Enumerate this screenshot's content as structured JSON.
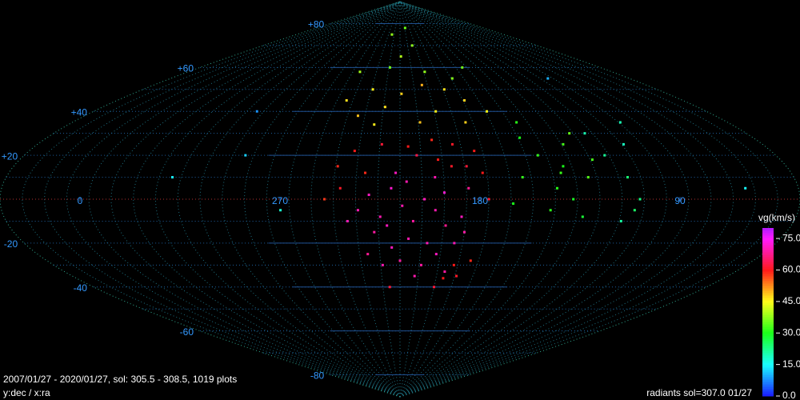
{
  "chart_data": {
    "type": "scatter",
    "projection": "sinusoidal",
    "xlim": [
      396,
      36
    ],
    "ylim": [
      -90,
      90
    ],
    "xticks": [
      270,
      180,
      90,
      0
    ],
    "yticks": [
      {
        "value": 80,
        "label": "+80"
      },
      {
        "value": 60,
        "label": "+60"
      },
      {
        "value": 40,
        "label": "+40"
      },
      {
        "value": 20,
        "label": "+20"
      },
      -20,
      -40,
      -60,
      -80
    ],
    "grid": true,
    "x": [
      200,
      205,
      210,
      215,
      220,
      225,
      230,
      195,
      190,
      198,
      205,
      212,
      220,
      228,
      235,
      188,
      185,
      200,
      218,
      208,
      192,
      225,
      232,
      240,
      186,
      196,
      213,
      222,
      203,
      216,
      180,
      190,
      200,
      212,
      225,
      238,
      245,
      243,
      178,
      185,
      192,
      198,
      232,
      208,
      188,
      185,
      192,
      180,
      196,
      250,
      176,
      222,
      175,
      185,
      195,
      205,
      215,
      225,
      235,
      240,
      200,
      165,
      180,
      230,
      250,
      200,
      215,
      225,
      195,
      175,
      250,
      205,
      230,
      160,
      150,
      140,
      135,
      145,
      130,
      155,
      160,
      125,
      138,
      148,
      128,
      165,
      142,
      133,
      152,
      118,
      112,
      120,
      108,
      115,
      105,
      95,
      110,
      290,
      300,
      100,
      60,
      320,
      270
    ],
    "y": [
      -5,
      0,
      -10,
      -3,
      5,
      -8,
      2,
      -12,
      -20,
      -25,
      -30,
      -18,
      -22,
      -15,
      -5,
      -8,
      5,
      10,
      12,
      -35,
      -33,
      -30,
      -25,
      -10,
      -15,
      3,
      8,
      -12,
      -20,
      -28,
      22,
      25,
      27,
      24,
      25,
      22,
      15,
      5,
      12,
      15,
      15,
      18,
      12,
      20,
      -30,
      -35,
      -36,
      -28,
      -40,
      0,
      0,
      -40,
      45,
      50,
      40,
      35,
      48,
      42,
      50,
      38,
      52,
      40,
      35,
      34,
      45,
      70,
      65,
      60,
      58,
      55,
      58,
      78,
      75,
      60,
      20,
      15,
      25,
      5,
      10,
      28,
      10,
      18,
      0,
      -5,
      30,
      -2,
      12,
      -8,
      35,
      20,
      10,
      30,
      0,
      -10,
      25,
      35,
      -5,
      20,
      40,
      55,
      5,
      10,
      -5
    ],
    "vg": [
      70,
      71,
      69,
      70,
      72,
      70,
      71,
      68,
      70,
      71,
      69,
      70,
      71,
      69,
      70,
      71,
      68,
      70,
      71,
      70,
      69,
      70,
      68,
      70,
      69,
      72,
      70,
      71,
      70,
      69,
      60,
      61,
      59,
      60,
      62,
      60,
      59,
      61,
      60,
      62,
      61,
      60,
      59,
      63,
      60,
      61,
      60,
      59,
      62,
      58,
      61,
      62,
      48,
      47,
      46,
      49,
      48,
      47,
      46,
      49,
      50,
      45,
      48,
      46,
      47,
      38,
      40,
      36,
      38,
      37,
      39,
      35,
      38,
      36,
      32,
      30,
      33,
      31,
      34,
      30,
      32,
      33,
      29,
      31,
      35,
      30,
      32,
      28,
      31,
      22,
      24,
      20,
      23,
      21,
      19,
      20,
      25,
      12,
      8,
      10,
      15,
      14,
      18
    ],
    "colorbar": {
      "label": "vg(km/s)",
      "lim": [
        0,
        80
      ],
      "ticks": [
        {
          "value": 75,
          "label": "75.0"
        },
        {
          "value": 60,
          "label": "60.0"
        },
        {
          "value": 45,
          "label": "45.0"
        },
        {
          "value": 30,
          "label": "30.0"
        },
        {
          "value": 15,
          "label": "15.0"
        },
        {
          "value": 0,
          "label": "0.0"
        }
      ]
    },
    "footer_left": [
      "2007/01/27 - 2020/01/27,  sol: 305.5 - 308.5, 1019 plots",
      "y:dec / x:ra"
    ],
    "footer_right": "radiants sol=307.0 01/27"
  }
}
